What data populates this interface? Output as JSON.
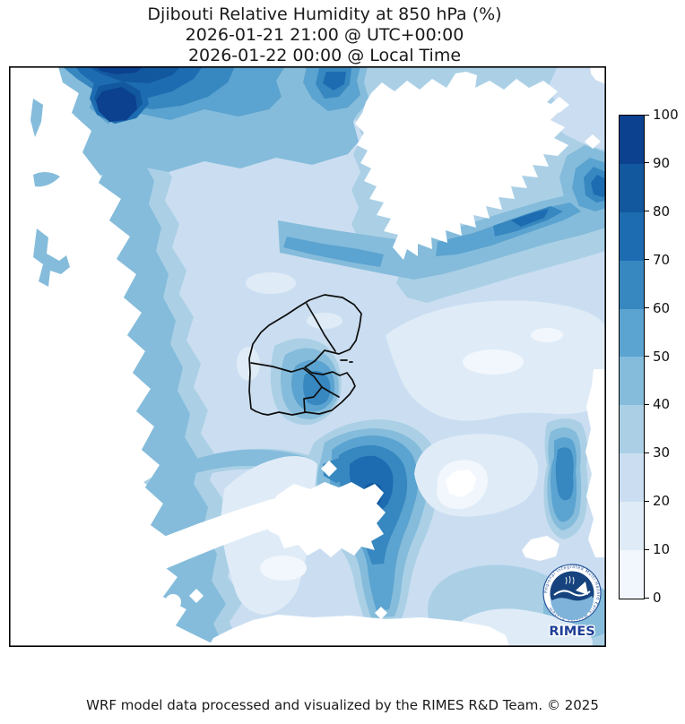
{
  "figure": {
    "title_line1": "Djibouti Relative Humidity at 850 hPa (%)",
    "title_line2": "2026-01-21 21:00 @ UTC+00:00",
    "title_line3": "2026-01-22 00:00 @ Local Time",
    "footer_credit": "WRF model data processed and visualized by the RIMES R&D Team. © 2025"
  },
  "map": {
    "variable": "Relative Humidity",
    "pressure_level": "850 hPa",
    "units": "%",
    "region": "Djibouti",
    "boundary_overlay": "Djibouti national and regional boundaries",
    "no_data_color": "#ffffff"
  },
  "colorbar": {
    "orientation": "vertical",
    "position": "right",
    "min": 0,
    "max": 100,
    "tick_step": 10,
    "ticks": [
      0,
      10,
      20,
      30,
      40,
      50,
      60,
      70,
      80,
      90,
      100
    ],
    "levels": [
      {
        "from": 0,
        "to": 10,
        "color": "#f2f7fd"
      },
      {
        "from": 10,
        "to": 20,
        "color": "#dfecf7"
      },
      {
        "from": 20,
        "to": 30,
        "color": "#cbdef1"
      },
      {
        "from": 30,
        "to": 40,
        "color": "#abd0e6"
      },
      {
        "from": 40,
        "to": 50,
        "color": "#85bcdb"
      },
      {
        "from": 50,
        "to": 60,
        "color": "#5ba3d0"
      },
      {
        "from": 60,
        "to": 70,
        "color": "#3787c0"
      },
      {
        "from": 70,
        "to": 80,
        "color": "#1d6cb1"
      },
      {
        "from": 80,
        "to": 90,
        "color": "#12589f"
      },
      {
        "from": 90,
        "to": 100,
        "color": "#0c4190"
      }
    ]
  },
  "logo": {
    "text": "RIMES",
    "ring_text": "Regional Integrated Multi-Hazard Early Warning System",
    "navy": "#16437e",
    "accent": "#27549b"
  },
  "chart_data": {
    "type": "heatmap",
    "title": "Djibouti Relative Humidity at 850 hPa (%)",
    "valid_time_utc": "2026-01-21 21:00 @ UTC+00:00",
    "valid_time_local": "2026-01-22 00:00 @ Local Time",
    "variable": "Relative Humidity",
    "units": "%",
    "colormap": "Blues",
    "contour_levels_percent": [
      0,
      10,
      20,
      30,
      40,
      50,
      60,
      70,
      80,
      90,
      100
    ],
    "legend_position": "right",
    "value_range_shown": [
      0,
      100
    ]
  }
}
